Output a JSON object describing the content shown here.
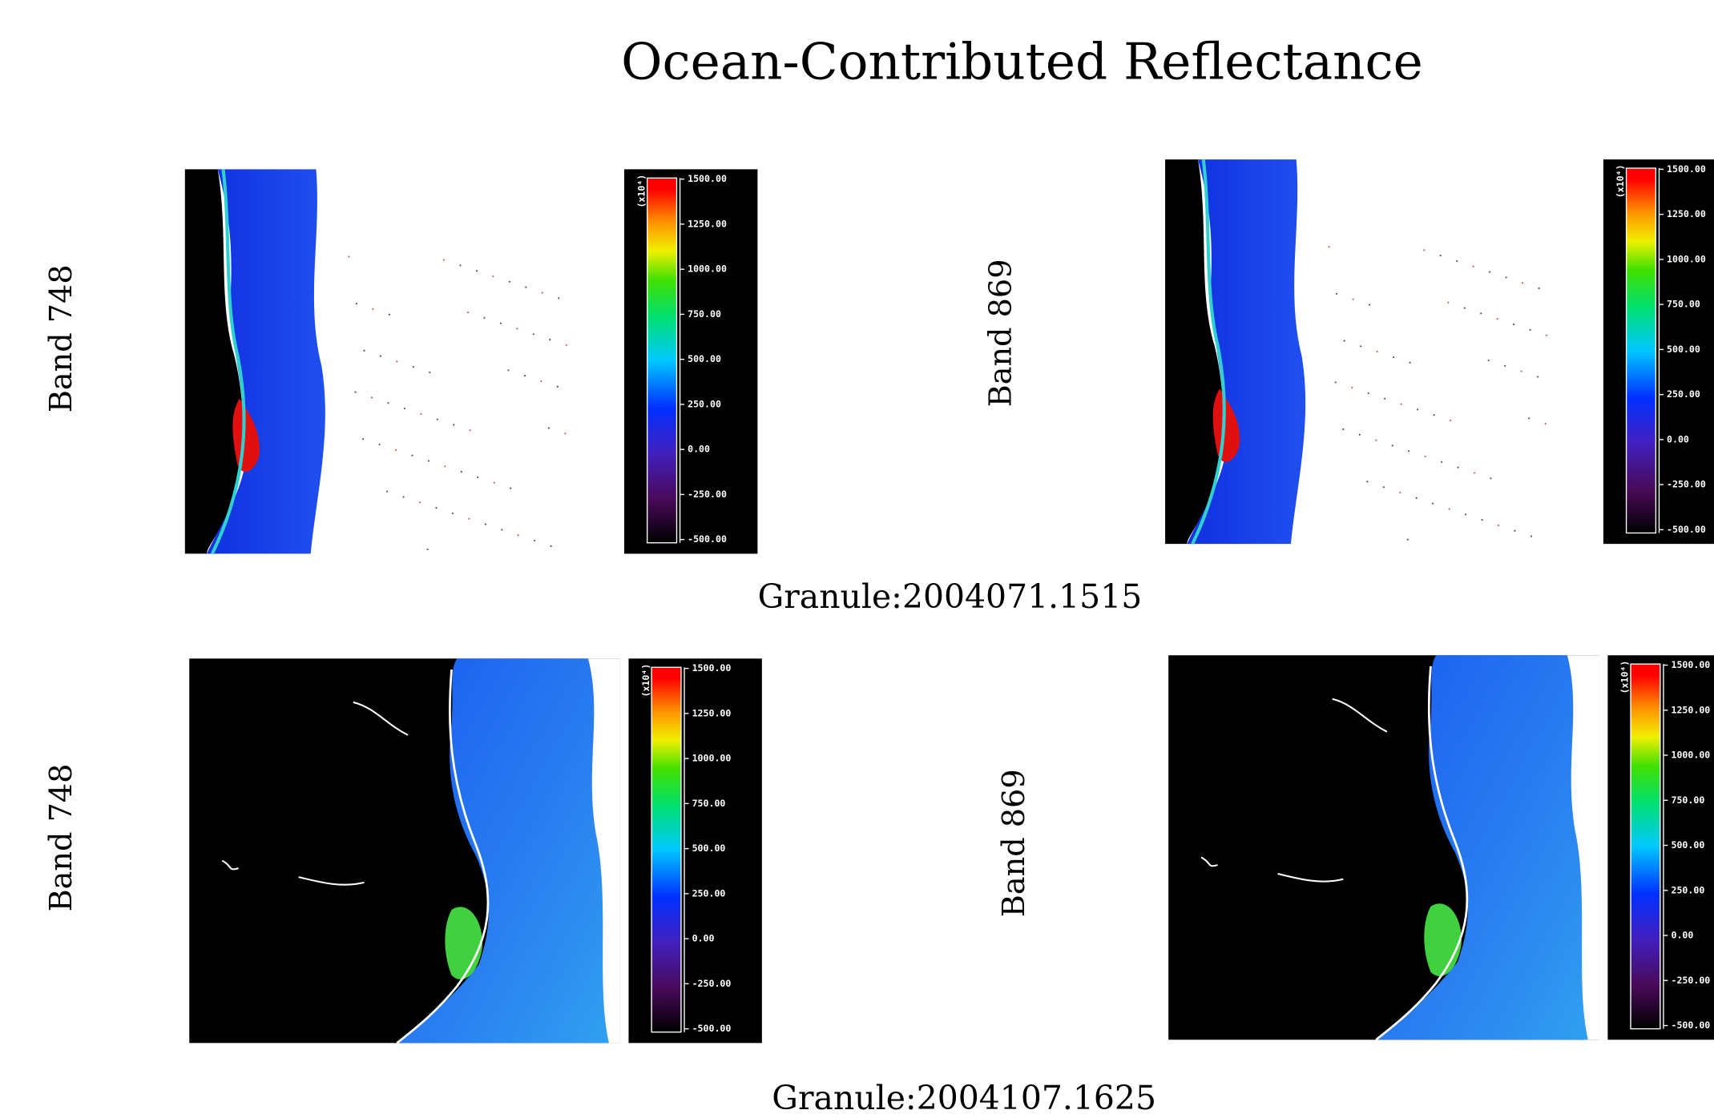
{
  "title": "Ocean-Contributed Reflectance",
  "rows": [
    {
      "caption": "Granule:2004071.1515",
      "panels": [
        {
          "label": "Band 748"
        },
        {
          "label": "Band 869"
        }
      ]
    },
    {
      "caption": "Granule:2004107.1625",
      "panels": [
        {
          "label": "Band 748"
        },
        {
          "label": "Band 869"
        }
      ]
    }
  ],
  "colorbar": {
    "unit": "(x10⁴)",
    "ticks": [
      "1500.00",
      "1250.00",
      "1000.00",
      "750.00",
      "500.00",
      "250.00",
      "0.00",
      "-250.00",
      "-500.00"
    ]
  }
}
